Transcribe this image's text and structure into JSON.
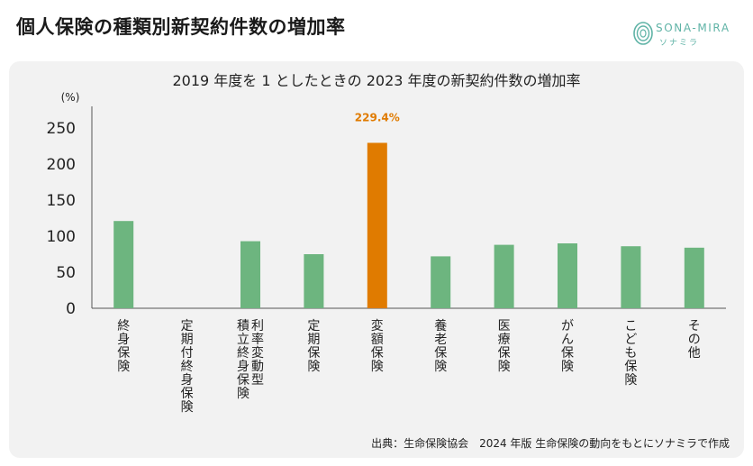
{
  "header": {
    "title": "個人保険の種類別新契約件数の増加率",
    "logo_name": "SONA-MIRA",
    "logo_sub": "ソナミラ"
  },
  "colors": {
    "bar": "#6db57f",
    "highlight": "#e07b00",
    "highlight_label": "#e07b00",
    "panel": "#f2f2f2",
    "logo": "#5fb3a6"
  },
  "chart_data": {
    "type": "bar",
    "title": "2019 年度を 1 としたときの 2023 年度の新契約件数の増加率",
    "ylabel": "(%)",
    "ylim": [
      0,
      250
    ],
    "yticks": [
      0,
      50,
      100,
      150,
      200,
      250
    ],
    "grid": false,
    "categories": [
      {
        "lines": [
          "終身保険"
        ]
      },
      {
        "lines": [
          "定期付終身保険"
        ]
      },
      {
        "lines": [
          "利率変動型",
          "積立終身保険"
        ]
      },
      {
        "lines": [
          "定期保険"
        ]
      },
      {
        "lines": [
          "変額保険"
        ]
      },
      {
        "lines": [
          "養老保険"
        ]
      },
      {
        "lines": [
          "医療保険"
        ]
      },
      {
        "lines": [
          "がん保険"
        ]
      },
      {
        "lines": [
          "こども保険"
        ]
      },
      {
        "lines": [
          "その他"
        ]
      }
    ],
    "values": [
      121,
      0,
      93,
      75,
      229.4,
      72,
      88,
      90,
      86,
      84
    ],
    "highlight_index": 4,
    "annotation": "229.4%"
  },
  "footer": {
    "source": "出典：生命保険協会　2024 年版 生命保険の動向をもとにソナミラで作成"
  }
}
